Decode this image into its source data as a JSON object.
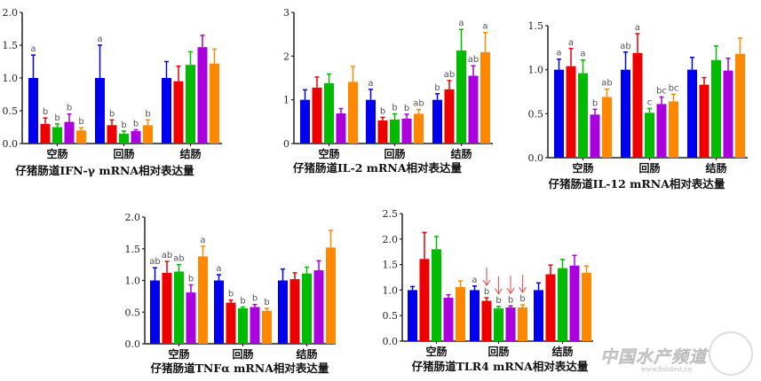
{
  "colors": [
    "#0000ee",
    "#ee0000",
    "#00bb00",
    "#aa00dd",
    "#ff8800"
  ],
  "arrow_color": "#e06060",
  "chart_data": [
    {
      "type": "bar",
      "title": "仔猪肠道IFN-γ mRNA相对表达量",
      "categories": [
        "空肠",
        "回肠",
        "结肠"
      ],
      "ylim": [
        0,
        2.0
      ],
      "yticks": [
        "0.0",
        "0.5",
        "1.0",
        "1.5",
        "2.0"
      ],
      "ytick_values": [
        0,
        0.5,
        1.0,
        1.5,
        2.0
      ],
      "series": [
        {
          "name": "group1",
          "values": [
            1.0,
            1.0,
            1.0
          ],
          "errors": [
            0.35,
            0.5,
            0.25
          ]
        },
        {
          "name": "group2",
          "values": [
            0.3,
            0.28,
            0.95
          ],
          "errors": [
            0.09,
            0.08,
            0.23
          ]
        },
        {
          "name": "group3",
          "values": [
            0.25,
            0.15,
            1.2
          ],
          "errors": [
            0.05,
            0.04,
            0.2
          ]
        },
        {
          "name": "group4",
          "values": [
            0.33,
            0.19,
            1.47
          ],
          "errors": [
            0.12,
            0.02,
            0.18
          ]
        },
        {
          "name": "group5",
          "values": [
            0.2,
            0.28,
            1.22
          ],
          "errors": [
            0.04,
            0.08,
            0.22
          ]
        }
      ],
      "labels": [
        [
          "a",
          "a",
          ""
        ],
        [
          "b",
          "b",
          ""
        ],
        [
          "b",
          "b",
          ""
        ],
        [
          "b",
          "b",
          ""
        ],
        [
          "b",
          "b",
          ""
        ]
      ],
      "arrows": []
    },
    {
      "type": "bar",
      "title": "仔猪肠道IL-2 mRNA相对表达量",
      "categories": [
        "空肠",
        "回肠",
        "结肠"
      ],
      "ylim": [
        0,
        3
      ],
      "yticks": [
        "0",
        "1",
        "2",
        "3"
      ],
      "ytick_values": [
        0,
        1,
        2,
        3
      ],
      "series": [
        {
          "name": "group1",
          "values": [
            1.0,
            1.0,
            1.0
          ],
          "errors": [
            0.23,
            0.24,
            0.14
          ]
        },
        {
          "name": "group2",
          "values": [
            1.28,
            0.53,
            1.24
          ],
          "errors": [
            0.24,
            0.07,
            0.2
          ]
        },
        {
          "name": "group3",
          "values": [
            1.38,
            0.55,
            2.13
          ],
          "errors": [
            0.21,
            0.13,
            0.48
          ]
        },
        {
          "name": "group4",
          "values": [
            0.69,
            0.57,
            1.55
          ],
          "errors": [
            0.11,
            0.1,
            0.23
          ]
        },
        {
          "name": "group5",
          "values": [
            1.41,
            0.68,
            2.09
          ],
          "errors": [
            0.35,
            0.1,
            0.45
          ]
        }
      ],
      "labels": [
        [
          "",
          "a",
          "b"
        ],
        [
          "",
          "b",
          "ab"
        ],
        [
          "",
          "b",
          "a"
        ],
        [
          "",
          "b",
          "ab"
        ],
        [
          "",
          "ab",
          "a"
        ]
      ],
      "arrows": []
    },
    {
      "type": "bar",
      "title": "仔猪肠道IL-12 mRNA相对表达量",
      "categories": [
        "空肠",
        "回肠",
        "结肠"
      ],
      "ylim": [
        0,
        1.5
      ],
      "yticks": [
        "0.0",
        "0.5",
        "1.0",
        "1.5"
      ],
      "ytick_values": [
        0,
        0.5,
        1.0,
        1.5
      ],
      "series": [
        {
          "name": "group1",
          "values": [
            1.0,
            1.0,
            1.0
          ],
          "errors": [
            0.12,
            0.2,
            0.14
          ]
        },
        {
          "name": "group2",
          "values": [
            1.04,
            1.19,
            0.83
          ],
          "errors": [
            0.2,
            0.22,
            0.08
          ]
        },
        {
          "name": "group3",
          "values": [
            0.96,
            0.51,
            1.11
          ],
          "errors": [
            0.15,
            0.05,
            0.16
          ]
        },
        {
          "name": "group4",
          "values": [
            0.49,
            0.61,
            0.99
          ],
          "errors": [
            0.06,
            0.08,
            0.14
          ]
        },
        {
          "name": "group5",
          "values": [
            0.69,
            0.64,
            1.18
          ],
          "errors": [
            0.09,
            0.08,
            0.18
          ]
        }
      ],
      "labels": [
        [
          "a",
          "ab",
          ""
        ],
        [
          "a",
          "a",
          ""
        ],
        [
          "a",
          "c",
          ""
        ],
        [
          "b",
          "bc",
          ""
        ],
        [
          "ab",
          "bc",
          ""
        ]
      ],
      "arrows": []
    },
    {
      "type": "bar",
      "title": "仔猪肠道TNFα mRNA相对表达量",
      "categories": [
        "空肠",
        "回肠",
        "结肠"
      ],
      "ylim": [
        0,
        2.0
      ],
      "yticks": [
        "0.0",
        "0.5",
        "1.0",
        "1.5",
        "2.0"
      ],
      "ytick_values": [
        0,
        0.5,
        1.0,
        1.5,
        2.0
      ],
      "series": [
        {
          "name": "group1",
          "values": [
            1.0,
            1.0,
            1.0
          ],
          "errors": [
            0.2,
            0.09,
            0.18
          ]
        },
        {
          "name": "group2",
          "values": [
            1.12,
            0.65,
            1.02
          ],
          "errors": [
            0.18,
            0.04,
            0.1
          ]
        },
        {
          "name": "group3",
          "values": [
            1.14,
            0.56,
            1.11
          ],
          "errors": [
            0.11,
            0.02,
            0.1
          ]
        },
        {
          "name": "group4",
          "values": [
            0.81,
            0.58,
            1.16
          ],
          "errors": [
            0.12,
            0.04,
            0.15
          ]
        },
        {
          "name": "group5",
          "values": [
            1.38,
            0.52,
            1.52
          ],
          "errors": [
            0.16,
            0.04,
            0.27
          ]
        }
      ],
      "labels": [
        [
          "ab",
          "a",
          ""
        ],
        [
          "ab",
          "b",
          ""
        ],
        [
          "ab",
          "b",
          ""
        ],
        [
          "b",
          "b",
          ""
        ],
        [
          "a",
          "b",
          ""
        ]
      ],
      "arrows": []
    },
    {
      "type": "bar",
      "title": "仔猪肠道TLR4 mRNA相对表达量",
      "categories": [
        "空肠",
        "回肠",
        "结肠"
      ],
      "ylim": [
        0,
        2.5
      ],
      "yticks": [
        "0.0",
        "0.5",
        "1.0",
        "1.5",
        "2.0",
        "2.5"
      ],
      "ytick_values": [
        0,
        0.5,
        1.0,
        1.5,
        2.0,
        2.5
      ],
      "series": [
        {
          "name": "group1",
          "values": [
            1.0,
            1.0,
            1.0
          ],
          "errors": [
            0.07,
            0.08,
            0.14
          ]
        },
        {
          "name": "group2",
          "values": [
            1.61,
            0.79,
            1.31
          ],
          "errors": [
            0.52,
            0.06,
            0.18
          ]
        },
        {
          "name": "group3",
          "values": [
            1.8,
            0.64,
            1.43
          ],
          "errors": [
            0.25,
            0.04,
            0.17
          ]
        },
        {
          "name": "group4",
          "values": [
            0.85,
            0.66,
            1.48
          ],
          "errors": [
            0.06,
            0.03,
            0.2
          ]
        },
        {
          "name": "group5",
          "values": [
            1.06,
            0.66,
            1.34
          ],
          "errors": [
            0.12,
            0.05,
            0.13
          ]
        }
      ],
      "labels": [
        [
          "",
          "a",
          ""
        ],
        [
          "",
          "b",
          ""
        ],
        [
          "",
          "b",
          ""
        ],
        [
          "",
          "b",
          ""
        ],
        [
          "",
          "b",
          ""
        ]
      ],
      "arrows": [
        [
          1,
          1
        ],
        [
          1,
          2
        ],
        [
          1,
          3
        ],
        [
          1,
          4
        ]
      ]
    }
  ],
  "watermark": {
    "text": "中国水产频道",
    "url": "www.fishfirst.cn"
  }
}
